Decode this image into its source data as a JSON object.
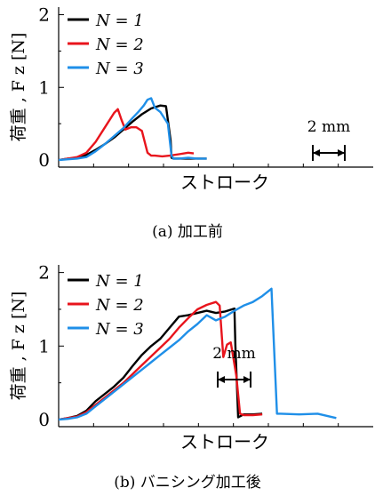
{
  "chart_data": [
    {
      "type": "line",
      "panel_caption": "(a) 加工前",
      "xlabel": "ストローク",
      "ylabel": "荷重 , F z [N]",
      "ylim": [
        0,
        2
      ],
      "yticks": [
        0,
        1,
        2
      ],
      "scale_bar": "2 mm",
      "legend": [
        "N = 1",
        "N = 2",
        "N = 3"
      ],
      "colors": [
        "#000000",
        "#e8141c",
        "#1f8fe8"
      ],
      "series": [
        {
          "name": "N = 1",
          "x": [
            0,
            0.5,
            1,
            1.5,
            2,
            2.5,
            3,
            3.5,
            4,
            4.5,
            5,
            5.5,
            5.8,
            6.05,
            6.1,
            6.2,
            6.4,
            7.0,
            7.5,
            8.0
          ],
          "values": [
            0,
            0.02,
            0.03,
            0.07,
            0.14,
            0.22,
            0.31,
            0.42,
            0.53,
            0.63,
            0.71,
            0.75,
            0.74,
            0.27,
            0.03,
            0.02,
            0.02,
            0.02,
            0.02,
            0.02
          ]
        },
        {
          "name": "N = 2",
          "x": [
            0,
            0.5,
            1,
            1.5,
            2,
            2.5,
            3,
            3.2,
            3.4,
            3.6,
            3.9,
            4.2,
            4.5,
            4.8,
            5.0,
            5.2,
            5.6,
            6.0,
            6.5,
            7.0,
            7.3
          ],
          "values": [
            0,
            0.02,
            0.04,
            0.1,
            0.25,
            0.45,
            0.65,
            0.7,
            0.55,
            0.42,
            0.45,
            0.45,
            0.4,
            0.1,
            0.06,
            0.06,
            0.05,
            0.06,
            0.08,
            0.1,
            0.09
          ]
        },
        {
          "name": "N = 3",
          "x": [
            0,
            0.5,
            1,
            1.5,
            2,
            2.5,
            3,
            3.5,
            4,
            4.3,
            4.6,
            4.8,
            5.0,
            5.2,
            5.5,
            5.9,
            6.1,
            6.2,
            6.5,
            7.0,
            7.5,
            8.0
          ],
          "values": [
            0,
            0.01,
            0.02,
            0.04,
            0.12,
            0.22,
            0.33,
            0.44,
            0.58,
            0.66,
            0.75,
            0.83,
            0.85,
            0.72,
            0.66,
            0.5,
            0.06,
            0.02,
            0.02,
            0.03,
            0.02,
            0.02
          ]
        }
      ]
    },
    {
      "type": "line",
      "panel_caption": "(b) バニシング加工後",
      "xlabel": "ストローク",
      "ylabel": "荷重 , F z [N]",
      "ylim": [
        0,
        2
      ],
      "yticks": [
        0,
        1,
        2
      ],
      "scale_bar": "2 mm",
      "legend": [
        "N = 1",
        "N = 2",
        "N = 3"
      ],
      "colors": [
        "#000000",
        "#e8141c",
        "#1f8fe8"
      ],
      "series": [
        {
          "name": "N = 1",
          "x": [
            0,
            0.5,
            1,
            1.5,
            2,
            2.5,
            3,
            3.5,
            4,
            4.5,
            5,
            5.5,
            6,
            6.5,
            7,
            7.5,
            8,
            8.5,
            9,
            9.5,
            9.55,
            9.7,
            10,
            10.5,
            11
          ],
          "values": [
            0,
            0.02,
            0.05,
            0.12,
            0.25,
            0.35,
            0.45,
            0.57,
            0.73,
            0.88,
            1.0,
            1.1,
            1.25,
            1.4,
            1.42,
            1.45,
            1.48,
            1.45,
            1.47,
            1.51,
            1.0,
            0.03,
            0.07,
            0.07,
            0.08
          ]
        },
        {
          "name": "N = 2",
          "x": [
            0,
            0.5,
            1,
            1.5,
            2,
            2.5,
            3,
            3.5,
            4,
            4.5,
            5,
            5.5,
            6,
            6.5,
            7,
            7.5,
            8,
            8.5,
            8.7,
            8.9,
            9.1,
            9.3,
            9.6,
            9.8,
            10,
            10.5,
            11
          ],
          "values": [
            0,
            0.02,
            0.04,
            0.1,
            0.2,
            0.3,
            0.4,
            0.5,
            0.62,
            0.74,
            0.86,
            0.98,
            1.1,
            1.25,
            1.38,
            1.5,
            1.56,
            1.6,
            1.55,
            0.85,
            1.02,
            1.05,
            0.6,
            0.08,
            0.06,
            0.06,
            0.07
          ]
        },
        {
          "name": "N = 3",
          "x": [
            0,
            0.5,
            1,
            1.5,
            2,
            2.5,
            3,
            3.5,
            4,
            4.5,
            5,
            5.5,
            6,
            6.5,
            7,
            7.5,
            8,
            8.5,
            9,
            9.5,
            10,
            10.5,
            11,
            11.5,
            11.6,
            11.8,
            12,
            13,
            14,
            15
          ],
          "values": [
            0,
            0.01,
            0.03,
            0.08,
            0.18,
            0.28,
            0.38,
            0.48,
            0.58,
            0.68,
            0.78,
            0.88,
            0.98,
            1.08,
            1.2,
            1.3,
            1.42,
            1.35,
            1.4,
            1.48,
            1.55,
            1.6,
            1.68,
            1.78,
            1.2,
            0.08,
            0.08,
            0.07,
            0.08,
            0.02
          ]
        }
      ]
    }
  ]
}
